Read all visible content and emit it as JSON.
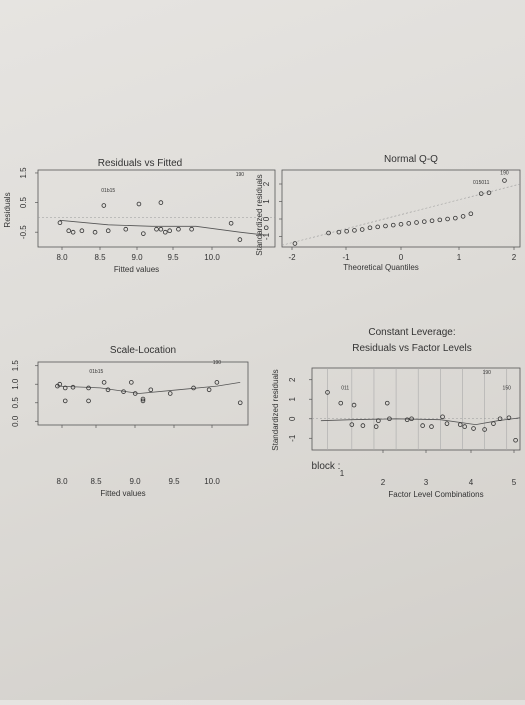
{
  "chart_data": [
    {
      "type": "scatter",
      "title": "Residuals vs Fitted",
      "xlabel": "Fitted values",
      "ylabel": "Residuals",
      "xlim": [
        7.7,
        10.4
      ],
      "ylim": [
        -1.0,
        1.6
      ],
      "xticks": [
        "8.0",
        "8.5",
        "9.0",
        "9.5",
        "10.0"
      ],
      "yticks": [
        "-0.5",
        "0.5",
        "1.5"
      ],
      "points": [
        [
          7.95,
          -0.18
        ],
        [
          8.05,
          -0.45
        ],
        [
          8.1,
          -0.5
        ],
        [
          8.2,
          -0.45
        ],
        [
          8.35,
          -0.5
        ],
        [
          8.5,
          -0.45
        ],
        [
          8.9,
          -0.55
        ],
        [
          8.7,
          -0.4
        ],
        [
          9.15,
          -0.5
        ],
        [
          9.2,
          -0.45
        ],
        [
          9.05,
          -0.4
        ],
        [
          9.1,
          -0.4
        ],
        [
          9.3,
          -0.4
        ],
        [
          9.45,
          -0.4
        ],
        [
          8.45,
          0.4
        ],
        [
          8.85,
          0.45
        ],
        [
          9.1,
          0.5
        ],
        [
          10.0,
          -0.75
        ],
        [
          10.3,
          -0.35
        ],
        [
          9.9,
          -0.2
        ]
      ],
      "labels": [
        {
          "text": "01b15",
          "x": 8.5,
          "y": 0.85
        },
        {
          "text": "190",
          "x": 10.0,
          "y": 1.4
        }
      ],
      "trend": [
        [
          7.95,
          -0.1
        ],
        [
          8.5,
          -0.25
        ],
        [
          9.0,
          -0.3
        ],
        [
          9.5,
          -0.3
        ],
        [
          10.0,
          -0.5
        ],
        [
          10.3,
          -0.6
        ]
      ],
      "zero_line": true
    },
    {
      "type": "scatter",
      "title": "Normal Q-Q",
      "xlabel": "Theoretical Quantiles",
      "ylabel": "Standardized residuals",
      "xlim": [
        -2.3,
        2.3
      ],
      "ylim": [
        -1.6,
        2.8
      ],
      "xticks": [
        "-2",
        "-1",
        "0",
        "1",
        "2"
      ],
      "yticks": [
        "-1",
        "0",
        "1",
        "2"
      ],
      "points": [
        [
          -2.05,
          -1.4
        ],
        [
          -1.4,
          -0.8
        ],
        [
          -1.2,
          -0.75
        ],
        [
          -1.05,
          -0.7
        ],
        [
          -0.9,
          -0.65
        ],
        [
          -0.75,
          -0.6
        ],
        [
          -0.6,
          -0.5
        ],
        [
          -0.45,
          -0.45
        ],
        [
          -0.3,
          -0.4
        ],
        [
          -0.15,
          -0.35
        ],
        [
          0.0,
          -0.3
        ],
        [
          0.15,
          -0.25
        ],
        [
          0.3,
          -0.2
        ],
        [
          0.45,
          -0.15
        ],
        [
          0.6,
          -0.1
        ],
        [
          0.75,
          -0.05
        ],
        [
          0.9,
          0.0
        ],
        [
          1.05,
          0.05
        ],
        [
          1.2,
          0.15
        ],
        [
          1.35,
          0.3
        ],
        [
          1.55,
          1.45
        ],
        [
          1.7,
          1.5
        ],
        [
          2.0,
          2.2
        ]
      ],
      "labels": [
        {
          "text": "015011",
          "x": 1.55,
          "y": 2.0
        },
        {
          "text": "190",
          "x": 2.0,
          "y": 2.55
        }
      ],
      "ref_line": [
        [
          -2.3,
          -1.5
        ],
        [
          2.3,
          2.0
        ]
      ]
    },
    {
      "type": "scatter",
      "title": "Scale-Location",
      "xlabel": "Fitted values",
      "ylabel": "",
      "xlim": [
        7.7,
        10.4
      ],
      "ylim": [
        -0.1,
        1.6
      ],
      "xticks": [
        "8.0",
        "8.5",
        "9.0",
        "9.5",
        "10.0"
      ],
      "yticks": [
        "0.0",
        "0.5",
        "1.0",
        "1.5"
      ],
      "points": [
        [
          7.95,
          0.95
        ],
        [
          7.98,
          1.0
        ],
        [
          8.05,
          0.9
        ],
        [
          8.15,
          0.92
        ],
        [
          8.35,
          0.9
        ],
        [
          8.6,
          0.85
        ],
        [
          8.8,
          0.8
        ],
        [
          8.95,
          0.75
        ],
        [
          9.15,
          0.85
        ],
        [
          9.4,
          0.75
        ],
        [
          8.55,
          1.05
        ],
        [
          8.9,
          1.05
        ],
        [
          9.05,
          0.55
        ],
        [
          9.05,
          0.6
        ],
        [
          8.05,
          0.55
        ],
        [
          8.35,
          0.55
        ],
        [
          9.7,
          0.9
        ],
        [
          10.0,
          1.05
        ],
        [
          10.3,
          0.5
        ],
        [
          9.9,
          0.85
        ]
      ],
      "labels": [
        {
          "text": "01b15",
          "x": 8.45,
          "y": 1.3
        },
        {
          "text": "190",
          "x": 10.0,
          "y": 1.55
        }
      ],
      "trend": [
        [
          7.95,
          0.95
        ],
        [
          8.5,
          0.9
        ],
        [
          9.0,
          0.75
        ],
        [
          9.5,
          0.85
        ],
        [
          10.0,
          0.95
        ],
        [
          10.3,
          1.05
        ]
      ]
    },
    {
      "type": "scatter",
      "title": "Constant Leverage:",
      "subtitle": "Residuals vs Factor Levels",
      "xlabel": "Factor Level Combinations",
      "ylabel": "Standardized residuals",
      "xlim": [
        0.6,
        5.3
      ],
      "ylim": [
        -1.6,
        2.6
      ],
      "xticks": [
        "2",
        "3",
        "4",
        "5"
      ],
      "factor_label": "block :",
      "factor_first_tick": "1",
      "yticks": [
        "-1",
        "0",
        "1",
        "2"
      ],
      "points": [
        [
          0.95,
          1.35
        ],
        [
          1.25,
          0.8
        ],
        [
          1.55,
          0.7
        ],
        [
          2.3,
          0.8
        ],
        [
          2.1,
          -0.1
        ],
        [
          2.35,
          0.0
        ],
        [
          2.75,
          -0.05
        ],
        [
          2.85,
          0.0
        ],
        [
          3.1,
          -0.35
        ],
        [
          3.55,
          0.1
        ],
        [
          3.65,
          -0.25
        ],
        [
          3.95,
          -0.3
        ],
        [
          4.05,
          -0.4
        ],
        [
          4.25,
          -0.5
        ],
        [
          4.5,
          -0.55
        ],
        [
          4.7,
          -0.25
        ],
        [
          4.85,
          0.0
        ],
        [
          5.05,
          0.05
        ],
        [
          1.5,
          -0.3
        ],
        [
          1.75,
          -0.35
        ],
        [
          2.05,
          -0.4
        ],
        [
          3.3,
          -0.4
        ],
        [
          5.2,
          -1.1
        ]
      ],
      "labels": [
        {
          "text": "011",
          "x": 1.35,
          "y": 1.5
        },
        {
          "text": "190",
          "x": 4.55,
          "y": 2.3
        },
        {
          "text": "150",
          "x": 5.0,
          "y": 1.5
        }
      ],
      "trend": [
        [
          0.8,
          -0.1
        ],
        [
          1.5,
          -0.05
        ],
        [
          2.5,
          0.0
        ],
        [
          3.5,
          -0.05
        ],
        [
          4.3,
          -0.3
        ],
        [
          4.8,
          -0.1
        ],
        [
          5.3,
          0.05
        ]
      ],
      "zero_line": true
    }
  ]
}
